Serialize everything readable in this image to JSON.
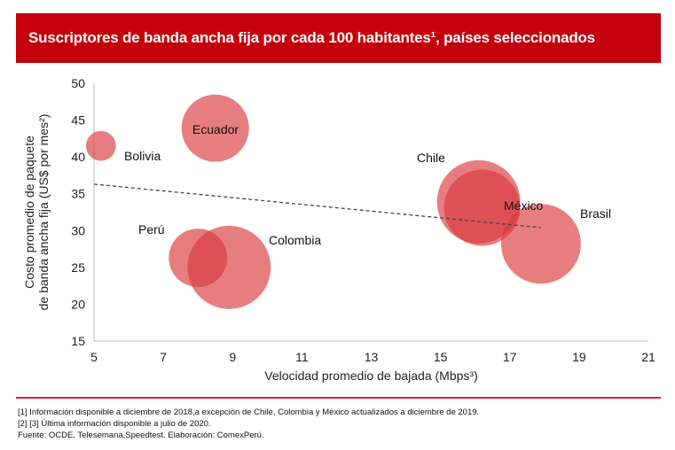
{
  "header": {
    "title": "Suscriptores de banda ancha fija por cada 100 habitantes¹, países seleccionados"
  },
  "chart_data": {
    "type": "scatter",
    "subtype": "bubble",
    "xlabel": "Velocidad promedio de bajada (Mbps³)",
    "ylabel_lines": [
      "Costo promedio de paquete",
      "de banda ancha fija (US$ por mes²)"
    ],
    "xlim": [
      5,
      21
    ],
    "ylim": [
      15,
      50
    ],
    "xticks": [
      5,
      7,
      9,
      11,
      13,
      15,
      17,
      19,
      21
    ],
    "yticks": [
      15,
      20,
      25,
      30,
      35,
      40,
      45,
      50
    ],
    "grid": false,
    "colors": {
      "bubble": "#d9393c",
      "trend": "#444444"
    },
    "points": [
      {
        "label": "Bolivia",
        "x": 5.2,
        "y": 41.5,
        "size": 2.3
      },
      {
        "label": "Ecuador",
        "x": 8.5,
        "y": 43.9,
        "size": 11.7
      },
      {
        "label": "Chile",
        "x": 16.1,
        "y": 33.9,
        "size": 17.9
      },
      {
        "label": "México",
        "x": 16.2,
        "y": 33.1,
        "size": 15.0
      },
      {
        "label": "Brasil",
        "x": 17.9,
        "y": 28.2,
        "size": 16.4
      },
      {
        "label": "Perú",
        "x": 8.0,
        "y": 26.3,
        "size": 8.8
      },
      {
        "label": "Colombia",
        "x": 8.9,
        "y": 25.0,
        "size": 17.9
      }
    ],
    "trendline": {
      "x": [
        5,
        17.9
      ],
      "y": [
        36.3,
        30.4
      ],
      "style": "dashed"
    }
  },
  "footer": {
    "notes": [
      "[1] Información disponible a diciembre de 2018,a excepción de Chile, Colombia y México actualizados a diciembre de 2019.",
      "[2] [3] Última información disponible a julio de 2020.",
      "Fuente: OCDE, Telesemana,Speedtest. Elaboración: ComexPerú."
    ]
  }
}
